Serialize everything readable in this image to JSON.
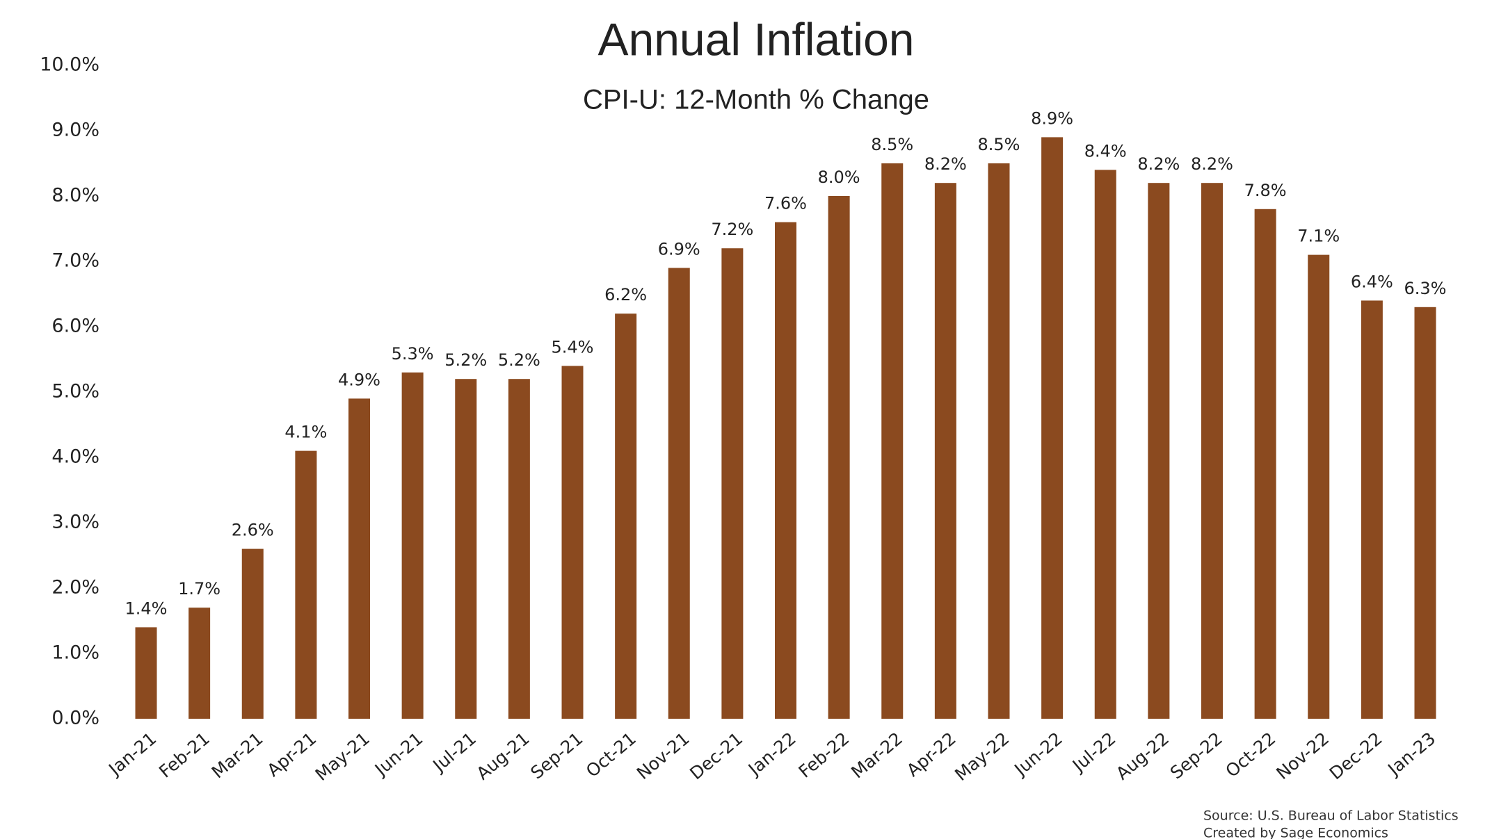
{
  "chart_data": {
    "type": "bar",
    "title": "Annual Inflation",
    "subtitle": "CPI-U: 12-Month % Change",
    "categories": [
      "Jan-21",
      "Feb-21",
      "Mar-21",
      "Apr-21",
      "May-21",
      "Jun-21",
      "Jul-21",
      "Aug-21",
      "Sep-21",
      "Oct-21",
      "Nov-21",
      "Dec-21",
      "Jan-22",
      "Feb-22",
      "Mar-22",
      "Apr-22",
      "May-22",
      "Jun-22",
      "Jul-22",
      "Aug-22",
      "Sep-22",
      "Oct-22",
      "Nov-22",
      "Dec-22",
      "Jan-23"
    ],
    "values": [
      1.4,
      1.7,
      2.6,
      4.1,
      4.9,
      5.3,
      5.2,
      5.2,
      5.4,
      6.2,
      6.9,
      7.2,
      7.6,
      8.0,
      8.5,
      8.2,
      8.5,
      8.9,
      8.4,
      8.2,
      8.2,
      7.8,
      7.1,
      6.4,
      6.3
    ],
    "value_labels": [
      "1.4%",
      "1.7%",
      "2.6%",
      "4.1%",
      "4.9%",
      "5.3%",
      "5.2%",
      "5.2%",
      "5.4%",
      "6.2%",
      "6.9%",
      "7.2%",
      "7.6%",
      "8.0%",
      "8.5%",
      "8.2%",
      "8.5%",
      "8.9%",
      "8.4%",
      "8.2%",
      "8.2%",
      "7.8%",
      "7.1%",
      "6.4%",
      "6.3%"
    ],
    "color": "#8b4a1f",
    "ylim": [
      0,
      10
    ],
    "yticks": [
      {
        "value": 0,
        "label": "0.0%"
      },
      {
        "value": 1,
        "label": "1.0%"
      },
      {
        "value": 2,
        "label": "2.0%"
      },
      {
        "value": 3,
        "label": "3.0%"
      },
      {
        "value": 4,
        "label": "4.0%"
      },
      {
        "value": 5,
        "label": "5.0%"
      },
      {
        "value": 6,
        "label": "6.0%"
      },
      {
        "value": 7,
        "label": "7.0%"
      },
      {
        "value": 8,
        "label": "8.0%"
      },
      {
        "value": 9,
        "label": "9.0%"
      },
      {
        "value": 10,
        "label": "10.0%"
      }
    ],
    "grid": false,
    "notes": [
      "Source: U.S. Bureau of Labor Statistics",
      "Created by Sage Economics"
    ]
  }
}
